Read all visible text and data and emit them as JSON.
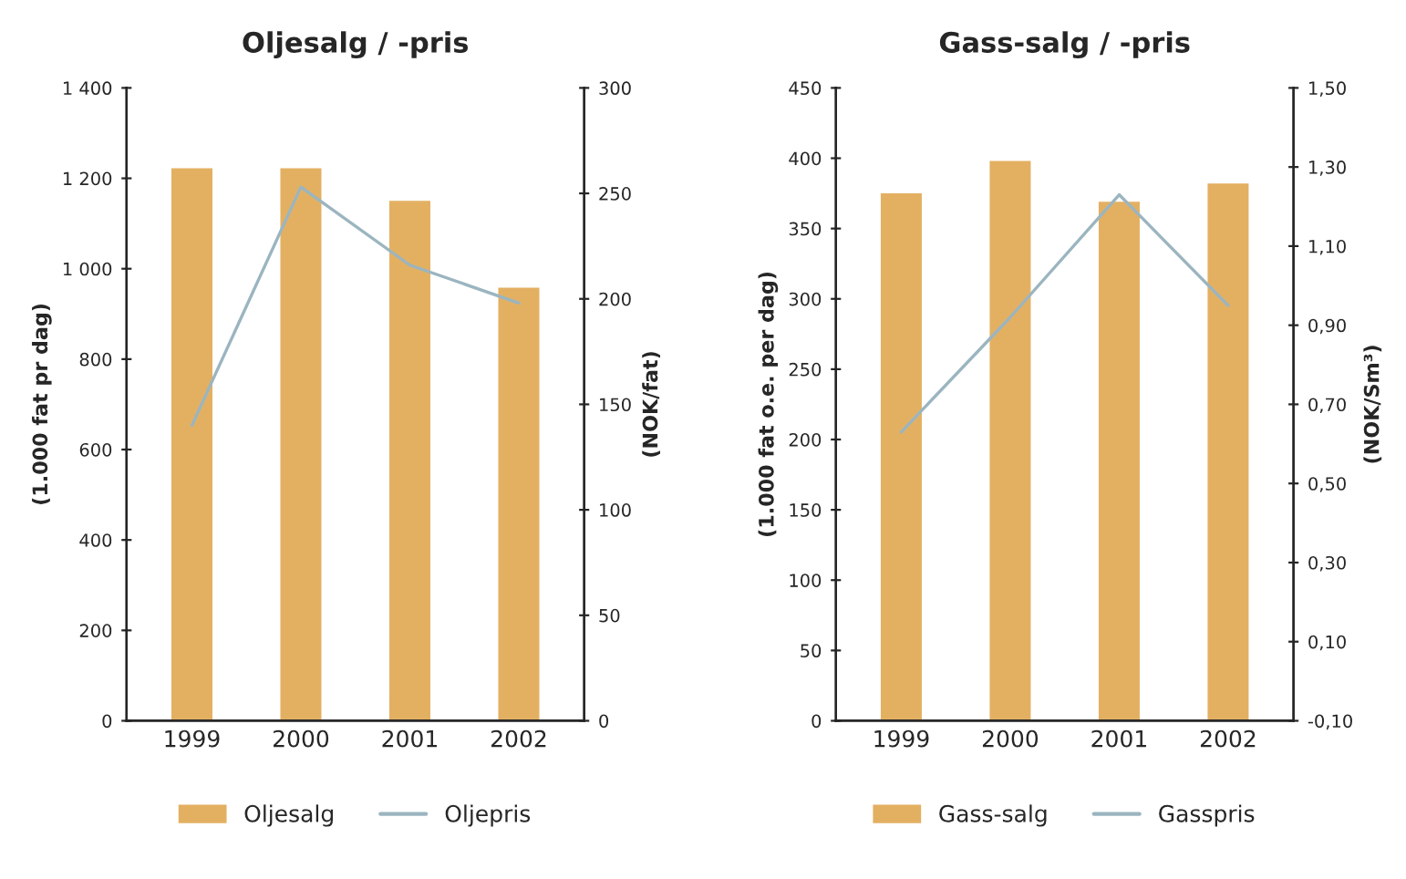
{
  "chart_data": [
    {
      "type": "bar",
      "title": "Oljesalg / -pris",
      "ylabel": "(1.000 fat pr dag)",
      "y2label": "(NOK/fat)",
      "categories": [
        "1999",
        "2000",
        "2001",
        "2002"
      ],
      "series": [
        {
          "name": "Oljesalg",
          "color": "#e3b062",
          "values": [
            1225,
            1225,
            1153,
            961
          ]
        },
        {
          "name": "Oljepris",
          "type": "line",
          "axis": "y2",
          "color": "#9bb5c0",
          "values": [
            140,
            253,
            216,
            198
          ]
        }
      ],
      "ylim": [
        0,
        1400
      ],
      "yticks": [
        0,
        200,
        400,
        600,
        800,
        {
          "value": 1000,
          "label": "1 000"
        },
        {
          "value": 1200,
          "label": "1 200"
        },
        {
          "value": 1400,
          "label": "1 400"
        }
      ],
      "y2lim": [
        0,
        300
      ],
      "y2ticks": [
        0,
        50,
        100,
        150,
        200,
        250,
        300
      ],
      "grid": false,
      "legend": "bottom",
      "marker": "none",
      "line_style": "solid"
    },
    {
      "type": "bar",
      "title": "Gass-salg / -pris",
      "ylabel": "(1.000 fat o.e. per dag)",
      "y2label": "(NOK/Sm³)",
      "categories": [
        "1999",
        "2000",
        "2001",
        "2002"
      ],
      "series": [
        {
          "name": "Gass-salg",
          "color": "#e3b062",
          "values": [
            376,
            399,
            370,
            383
          ]
        },
        {
          "name": "Gasspris",
          "type": "line",
          "axis": "y2",
          "color": "#9bb5c0",
          "values": [
            0.63,
            0.92,
            1.23,
            0.95
          ]
        }
      ],
      "ylim": [
        0,
        450
      ],
      "yticks": [
        0,
        50,
        100,
        150,
        200,
        250,
        300,
        350,
        400,
        450
      ],
      "y2lim": [
        -0.1,
        1.5
      ],
      "y2ticks": [
        {
          "value": -0.1,
          "label": "-0,10"
        },
        {
          "value": 0.1,
          "label": "0,10"
        },
        {
          "value": 0.3,
          "label": "0,30"
        },
        {
          "value": 0.5,
          "label": "0,50"
        },
        {
          "value": 0.7,
          "label": "0,70"
        },
        {
          "value": 0.9,
          "label": "0,90"
        },
        {
          "value": 1.1,
          "label": "1,10"
        },
        {
          "value": 1.3,
          "label": "1,30"
        },
        {
          "value": 1.5,
          "label": "1,50"
        }
      ],
      "grid": false,
      "legend": "bottom",
      "marker": "none",
      "line_style": "solid"
    }
  ]
}
